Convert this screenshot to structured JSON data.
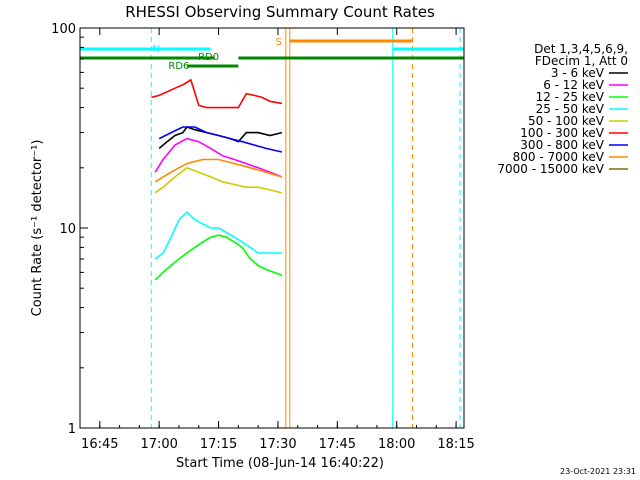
{
  "chart_data": {
    "type": "line",
    "title": "RHESSI Observing Summary Count Rates",
    "xlabel": "Start Time (08-Jun-14 16:40:22)",
    "ylabel": "Count Rate (s⁻¹ detector⁻¹)",
    "yscale": "log",
    "xlim": [
      "16:40",
      "18:17"
    ],
    "ylim": [
      1,
      100
    ],
    "x_ticks": [
      "16:45",
      "17:00",
      "17:15",
      "17:30",
      "17:45",
      "18:00",
      "18:15"
    ],
    "y_ticks": [
      "1",
      "10",
      "100"
    ],
    "grid": false,
    "legend_placement": "right",
    "legend_header": [
      "Det 1,3,4,5,6,9,",
      "FDecim 1, Att 0"
    ],
    "timestamp": "23-Oct-2021 23:31",
    "series": [
      {
        "name": "3 - 6 keV",
        "color": "#000000",
        "x": [
          "17:00",
          "17:02",
          "17:04",
          "17:06",
          "17:07",
          "17:09",
          "17:12",
          "17:15",
          "17:18",
          "17:20",
          "17:22",
          "17:25",
          "17:28",
          "17:31"
        ],
        "values": [
          25,
          27,
          29,
          30,
          32,
          31,
          30,
          29,
          28,
          27,
          30,
          30,
          29,
          30
        ]
      },
      {
        "name": "6 - 12 keV",
        "color": "#ff00ff",
        "x": [
          "16:59",
          "17:01",
          "17:04",
          "17:07",
          "17:10",
          "17:13",
          "17:16",
          "17:19",
          "17:22",
          "17:25",
          "17:28",
          "17:31"
        ],
        "values": [
          19,
          22,
          26,
          28,
          27,
          25,
          23,
          22,
          21,
          20,
          19,
          18
        ]
      },
      {
        "name": "12 - 25 keV",
        "color": "#00ff00",
        "x": [
          "16:59",
          "17:01",
          "17:03",
          "17:05",
          "17:07",
          "17:09",
          "17:11",
          "17:13",
          "17:15",
          "17:17",
          "17:19",
          "17:21",
          "17:23",
          "17:25",
          "17:27",
          "17:29",
          "17:31"
        ],
        "values": [
          5.5,
          6,
          6.5,
          7,
          7.5,
          8,
          8.5,
          9,
          9.2,
          9,
          8.5,
          8,
          7,
          6.5,
          6.2,
          6,
          5.8
        ]
      },
      {
        "name": "25 - 50 keV",
        "color": "#00ffff",
        "x": [
          "16:59",
          "17:01",
          "17:03",
          "17:05",
          "17:07",
          "17:09",
          "17:11",
          "17:13",
          "17:15",
          "17:17",
          "17:19",
          "17:21",
          "17:23",
          "17:25",
          "17:27",
          "17:29",
          "17:31"
        ],
        "values": [
          7,
          7.5,
          9,
          11,
          12,
          11,
          10.5,
          10,
          10,
          9.5,
          9,
          8.5,
          8,
          7.5,
          7.5,
          7.5,
          7.5
        ]
      },
      {
        "name": "50 - 100 keV",
        "color": "#cccc00",
        "x": [
          "16:59",
          "17:01",
          "17:04",
          "17:07",
          "17:10",
          "17:13",
          "17:16",
          "17:19",
          "17:22",
          "17:25",
          "17:28",
          "17:31"
        ],
        "values": [
          15,
          16,
          18,
          20,
          19,
          18,
          17,
          16.5,
          16,
          16,
          15.5,
          15
        ]
      },
      {
        "name": "100 - 300 keV",
        "color": "#ff0000",
        "x": [
          "16:58",
          "17:00",
          "17:02",
          "17:04",
          "17:06",
          "17:08",
          "17:10",
          "17:12",
          "17:14",
          "17:16",
          "17:18",
          "17:20",
          "17:22",
          "17:24",
          "17:26",
          "17:28",
          "17:31"
        ],
        "values": [
          45,
          46,
          48,
          50,
          52,
          55,
          41,
          40,
          40,
          40,
          40,
          40,
          47,
          46,
          45,
          43,
          42
        ]
      },
      {
        "name": "300 - 800 keV",
        "color": "#0000ff",
        "x": [
          "17:00",
          "17:03",
          "17:06",
          "17:09",
          "17:12",
          "17:15",
          "17:18",
          "17:21",
          "17:24",
          "17:27",
          "17:31"
        ],
        "values": [
          28,
          30,
          32,
          32,
          30,
          29,
          28,
          27,
          26,
          25,
          24
        ]
      },
      {
        "name": "800 - 7000 keV",
        "color": "#ff8800",
        "x": [
          "16:59",
          "17:01",
          "17:03",
          "17:05",
          "17:07",
          "17:09",
          "17:11",
          "17:13",
          "17:15",
          "17:17",
          "17:19",
          "17:21",
          "17:23",
          "17:25",
          "17:27",
          "17:29",
          "17:31"
        ],
        "values": [
          17,
          18,
          19,
          20,
          21,
          21.5,
          22,
          22,
          22,
          21.5,
          21,
          20.5,
          20,
          19.5,
          19,
          18.5,
          18
        ]
      },
      {
        "name": "7000 - 15000 keV",
        "color": "#886600",
        "x": [],
        "values": []
      }
    ],
    "flag_bars": [
      {
        "label": "N",
        "color": "#00ffff",
        "segments": [
          [
            "16:40",
            "17:13"
          ],
          [
            "17:59",
            "18:17"
          ]
        ]
      },
      {
        "label": "S",
        "color": "#ff8800",
        "segments": [
          [
            "17:33",
            "18:04"
          ]
        ]
      },
      {
        "label": "RD0",
        "color": "#008800",
        "segments": [
          [
            "16:40",
            "17:14"
          ],
          [
            "17:20",
            "18:17"
          ]
        ]
      },
      {
        "label": "RD6",
        "color": "#008800",
        "segments": [
          [
            "17:07",
            "17:20"
          ]
        ]
      }
    ],
    "vertical_markers": [
      {
        "x": "16:40",
        "color": "#00ffff",
        "style": "solid"
      },
      {
        "x": "16:58",
        "color": "#00ffff",
        "style": "dashed"
      },
      {
        "x": "17:32",
        "color": "#ff8800",
        "style": "solid"
      },
      {
        "x": "17:33",
        "color": "#ff8800",
        "style": "solid"
      },
      {
        "x": "17:59",
        "color": "#00ffff",
        "style": "solid"
      },
      {
        "x": "18:04",
        "color": "#ff8800",
        "style": "dashed"
      },
      {
        "x": "18:16",
        "color": "#00ffff",
        "style": "dashed"
      }
    ]
  }
}
